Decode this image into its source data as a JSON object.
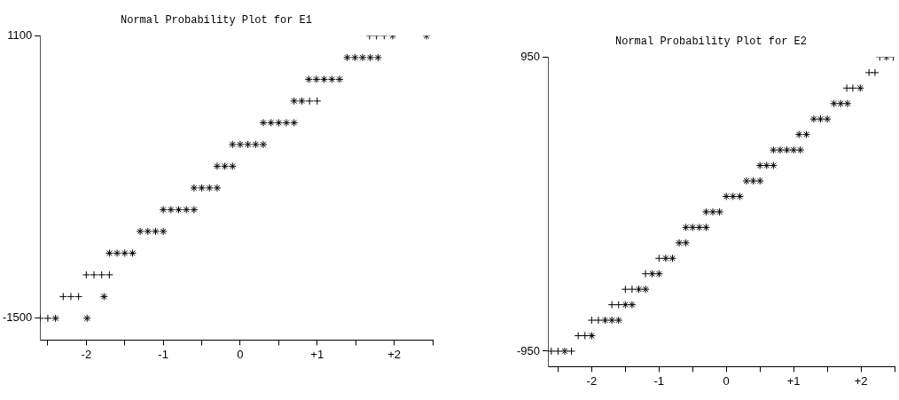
{
  "chart_data": [
    {
      "type": "scatter",
      "title": "Normal Probability Plot for E1",
      "xlim": [
        -2.6,
        2.5
      ],
      "ylim": [
        -1700,
        1100
      ],
      "xticks": [
        {
          "value": -2.5,
          "label": null
        },
        -2,
        {
          "value": -1.5,
          "label": null
        },
        -1,
        {
          "value": -0.5,
          "label": null
        },
        0,
        {
          "value": 0.5,
          "label": null
        },
        {
          "value": 1,
          "label": "+1"
        },
        {
          "value": 1.5,
          "label": null
        },
        {
          "value": 2,
          "label": "+2"
        },
        {
          "value": 2.5,
          "label": null
        }
      ],
      "yticks": [
        -1500,
        1100
      ],
      "grid": false,
      "legend": false,
      "series": [
        {
          "color": "#000000",
          "x": [
            1.98,
            2.42,
            1.39,
            1.49,
            1.59,
            1.69,
            1.79,
            0.89,
            0.99,
            1.09,
            1.19,
            1.29,
            0.7,
            0.8,
            0.3,
            0.4,
            0.5,
            0.6,
            0.7,
            -0.1,
            0,
            0.1,
            0.2,
            0.3,
            -0.3,
            -0.2,
            -0.1,
            -0.6,
            -0.5,
            -0.4,
            -0.3,
            -1,
            -0.9,
            -0.8,
            -0.7,
            -0.6,
            -1.3,
            -1.2,
            -1.1,
            -1,
            -1.7,
            -1.6,
            -1.5,
            -1.4,
            -1.77,
            -2.4,
            -1.99
          ],
          "values": [
            1100,
            1100,
            900,
            900,
            900,
            900,
            900,
            700,
            700,
            700,
            700,
            700,
            500,
            500,
            300,
            300,
            300,
            300,
            300,
            100,
            100,
            100,
            100,
            100,
            -100,
            -100,
            -100,
            -300,
            -300,
            -300,
            -300,
            -500,
            -500,
            -500,
            -500,
            -500,
            -700,
            -700,
            -700,
            -700,
            -900,
            -900,
            -900,
            -900,
            -1300,
            -1500,
            -1500
          ]
        },
        {
          "color": "#000000",
          "marker": "cross",
          "x": [
            1.68,
            1.77,
            1.87,
            0.9,
            1,
            -2,
            -1.9,
            -1.8,
            -1.7,
            -2.3,
            -2.2,
            -2.1,
            -2.6,
            -2.5
          ],
          "values": [
            1100,
            1100,
            1100,
            500,
            500,
            -1100,
            -1100,
            -1100,
            -1100,
            -1300,
            -1300,
            -1300,
            -1500,
            -1500
          ]
        }
      ]
    },
    {
      "type": "scatter",
      "title": "Normal Probability Plot for E2",
      "xlim": [
        -2.65,
        2.5
      ],
      "ylim": [
        -1050,
        950
      ],
      "xticks": [
        {
          "value": -2.5,
          "label": null
        },
        -2,
        {
          "value": -1.5,
          "label": null
        },
        -1,
        {
          "value": -0.5,
          "label": null
        },
        0,
        {
          "value": 0.5,
          "label": null
        },
        {
          "value": 1,
          "label": "+1"
        },
        {
          "value": 1.5,
          "label": null
        },
        {
          "value": 2,
          "label": "+2"
        },
        {
          "value": 2.5,
          "label": null
        }
      ],
      "yticks": [
        -950,
        950
      ],
      "grid": false,
      "legend": false,
      "series": [
        {
          "color": "#000000",
          "x": [
            2.38,
            1.99,
            1.6,
            1.7,
            1.8,
            1.3,
            1.4,
            1.5,
            1.08,
            1.19,
            0.7,
            0.8,
            0.9,
            1,
            1.1,
            0.5,
            0.6,
            0.7,
            0.3,
            0.4,
            0.5,
            0,
            0.1,
            0.2,
            -0.3,
            -0.2,
            -0.1,
            -0.6,
            -0.5,
            -0.4,
            -0.3,
            -0.7,
            -0.6,
            -0.9,
            -0.8,
            -1.1,
            -1,
            -1.3,
            -1.2,
            -1.5,
            -1.4,
            -1.8,
            -1.7,
            -1.6,
            -2,
            -2.4
          ],
          "values": [
            950,
            750,
            650,
            650,
            650,
            550,
            550,
            550,
            450,
            450,
            350,
            350,
            350,
            350,
            350,
            250,
            250,
            250,
            150,
            150,
            150,
            50,
            50,
            50,
            -50,
            -50,
            -50,
            -150,
            -150,
            -150,
            -150,
            -250,
            -250,
            -350,
            -350,
            -450,
            -450,
            -550,
            -550,
            -650,
            -650,
            -750,
            -750,
            -750,
            -850,
            -950
          ]
        },
        {
          "color": "#000000",
          "marker": "cross",
          "x": [
            2.28,
            2.48,
            2.12,
            2.21,
            1.79,
            1.88,
            -1,
            -1.2,
            -1.5,
            -1.4,
            -1.7,
            -1.6,
            -2,
            -1.9,
            -2.2,
            -2.1,
            -2.6,
            -2.5,
            -2.3
          ],
          "values": [
            950,
            950,
            850,
            850,
            750,
            750,
            -350,
            -450,
            -550,
            -550,
            -650,
            -650,
            -750,
            -750,
            -850,
            -850,
            -950,
            -950,
            -950
          ]
        }
      ]
    }
  ]
}
